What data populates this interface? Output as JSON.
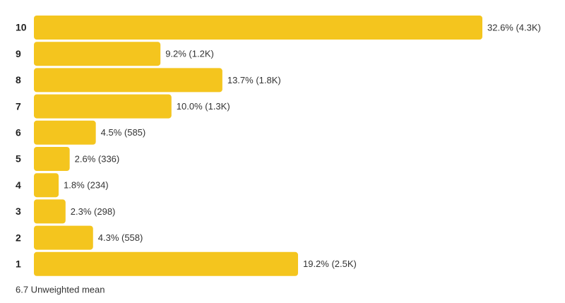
{
  "chart_data": {
    "type": "bar",
    "orientation": "horizontal",
    "categories": [
      "10",
      "9",
      "8",
      "7",
      "6",
      "5",
      "4",
      "3",
      "2",
      "1"
    ],
    "values": [
      32.6,
      9.2,
      13.7,
      10.0,
      4.5,
      2.6,
      1.8,
      2.3,
      4.3,
      19.2
    ],
    "value_labels": [
      "32.6% (4.3K)",
      "9.2% (1.2K)",
      "13.7% (1.8K)",
      "10.0% (1.3K)",
      "4.5% (585)",
      "2.6% (336)",
      "1.8% (234)",
      "2.3% (298)",
      "4.3% (558)",
      "19.2% (2.5K)"
    ],
    "color": "#f4c51e",
    "footer": "6.7 Unweighted mean"
  }
}
